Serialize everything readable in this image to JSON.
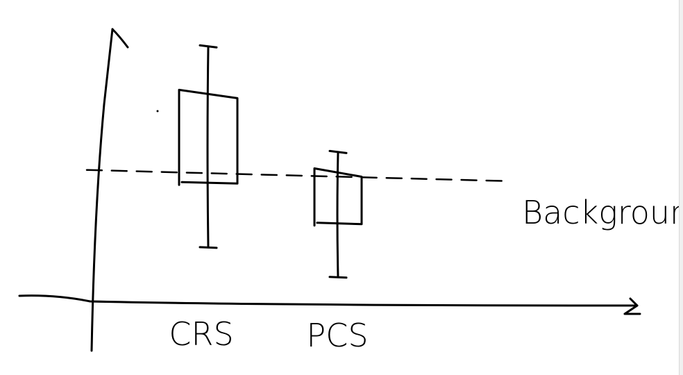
{
  "chart_data": {
    "type": "box",
    "title": "",
    "xlabel": "",
    "ylabel": "",
    "ylim": [
      0,
      10
    ],
    "categories": [
      "CRS",
      "PCS"
    ],
    "boxes": [
      {
        "category": "CRS",
        "whisker_low": 1.9,
        "q1": 4.3,
        "q3": 7.4,
        "whisker_high": 9.3
      },
      {
        "category": "PCS",
        "whisker_low": 0.8,
        "q1": 2.8,
        "q3": 4.5,
        "whisker_high": 5.4
      }
    ],
    "reference_lines": [
      {
        "label": "Background",
        "value": 4.7,
        "style": "dashed"
      }
    ],
    "grid": false,
    "colors": {
      "ink": "#000000",
      "background": "#ffffff"
    }
  }
}
